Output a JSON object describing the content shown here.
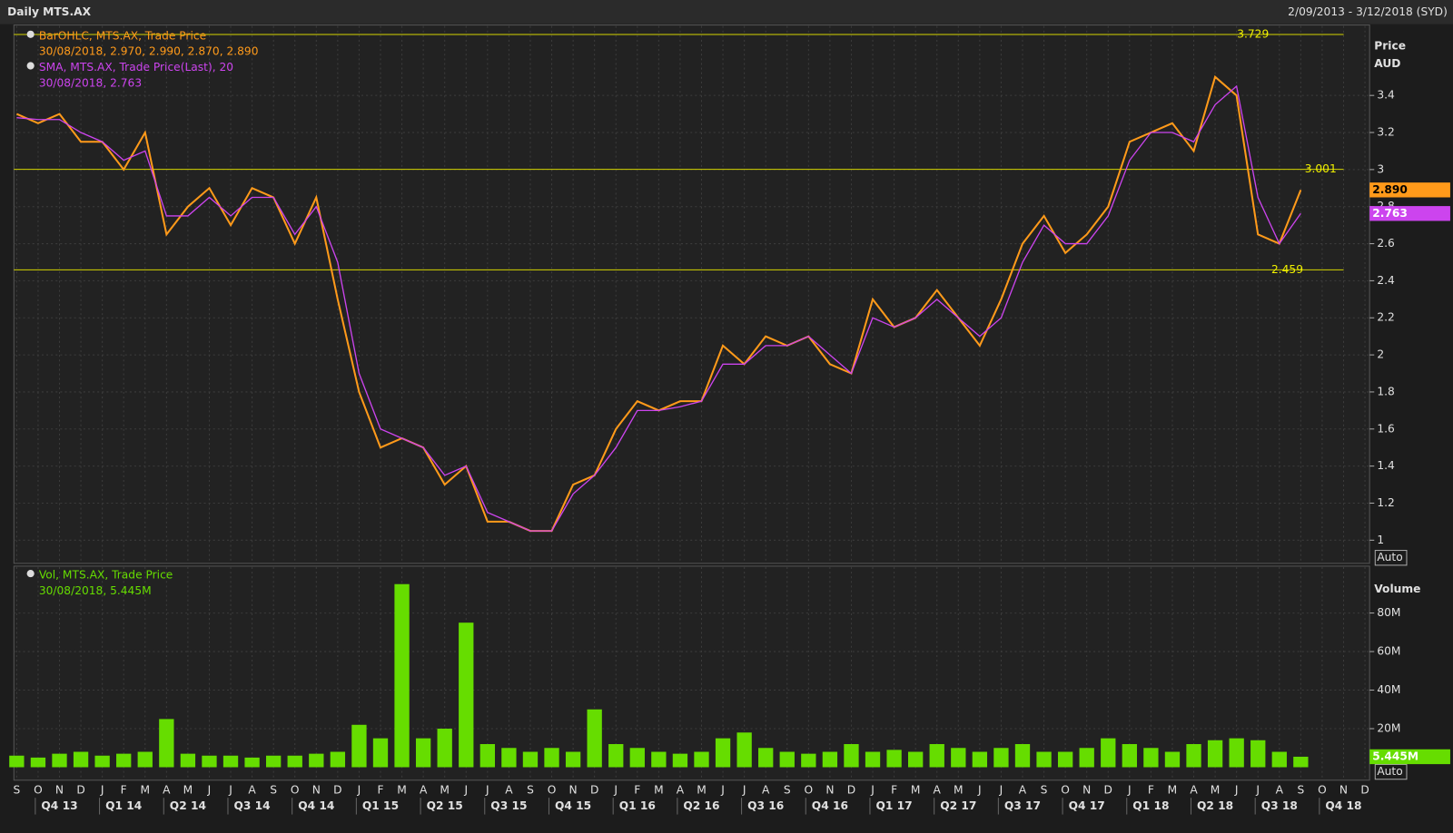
{
  "header": {
    "title": "Daily MTS.AX",
    "range": "2/09/2013 - 3/12/2018 (SYD)"
  },
  "chart_data": [
    {
      "type": "line",
      "axis_label": [
        "Price",
        "AUD"
      ],
      "scale_mode": "Auto",
      "categories": [
        "S",
        "O",
        "N",
        "D",
        "J",
        "F",
        "M",
        "A",
        "M",
        "J",
        "J",
        "A",
        "S",
        "O",
        "N",
        "D",
        "J",
        "F",
        "M",
        "A",
        "M",
        "J",
        "J",
        "A",
        "S",
        "O",
        "N",
        "D",
        "J",
        "F",
        "M",
        "A",
        "M",
        "J",
        "J",
        "A",
        "S",
        "O",
        "N",
        "D",
        "J",
        "F",
        "M",
        "A",
        "M",
        "J",
        "J",
        "A",
        "S",
        "O",
        "N",
        "D",
        "J",
        "F",
        "M",
        "A",
        "M",
        "J",
        "J",
        "A",
        "S",
        "O",
        "N",
        "D"
      ],
      "quarters": [
        "Q4 13",
        "Q1 14",
        "Q2 14",
        "Q3 14",
        "Q4 14",
        "Q1 15",
        "Q2 15",
        "Q3 15",
        "Q4 15",
        "Q1 16",
        "Q2 16",
        "Q3 16",
        "Q4 16",
        "Q1 17",
        "Q2 17",
        "Q3 17",
        "Q4 17",
        "Q1 18",
        "Q2 18",
        "Q3 18",
        "Q4 18"
      ],
      "series": [
        {
          "name": "BarOHLC, MTS.AX, Trade Price",
          "detail": "30/08/2018, 2.970, 2.990, 2.870, 2.890",
          "color": "#ff9a1a",
          "last_value": {
            "value": 2.89,
            "label": "2.890"
          },
          "values": [
            3.3,
            3.25,
            3.3,
            3.15,
            3.15,
            3.0,
            3.2,
            2.65,
            2.8,
            2.9,
            2.7,
            2.9,
            2.85,
            2.6,
            2.85,
            2.3,
            1.8,
            1.5,
            1.55,
            1.5,
            1.3,
            1.4,
            1.1,
            1.1,
            1.05,
            1.05,
            1.3,
            1.35,
            1.6,
            1.75,
            1.7,
            1.75,
            1.75,
            2.05,
            1.95,
            2.1,
            2.05,
            2.1,
            1.95,
            1.9,
            2.3,
            2.15,
            2.2,
            2.35,
            2.2,
            2.05,
            2.3,
            2.6,
            2.75,
            2.55,
            2.65,
            2.8,
            3.15,
            3.2,
            3.25,
            3.1,
            3.5,
            3.4,
            2.65,
            2.6,
            2.89,
            null,
            null,
            null
          ]
        },
        {
          "name": "SMA, MTS.AX, Trade Price(Last),  20",
          "detail": "30/08/2018, 2.763",
          "color": "#cc44ee",
          "last_value": {
            "value": 2.763,
            "label": "2.763"
          },
          "values": [
            3.28,
            3.27,
            3.27,
            3.2,
            3.15,
            3.05,
            3.1,
            2.75,
            2.75,
            2.85,
            2.75,
            2.85,
            2.85,
            2.65,
            2.8,
            2.5,
            1.9,
            1.6,
            1.55,
            1.5,
            1.35,
            1.4,
            1.15,
            1.1,
            1.05,
            1.05,
            1.25,
            1.35,
            1.5,
            1.7,
            1.7,
            1.72,
            1.75,
            1.95,
            1.95,
            2.05,
            2.05,
            2.1,
            2.0,
            1.9,
            2.2,
            2.15,
            2.2,
            2.3,
            2.2,
            2.1,
            2.2,
            2.5,
            2.7,
            2.6,
            2.6,
            2.75,
            3.05,
            3.2,
            3.2,
            3.15,
            3.35,
            3.45,
            2.85,
            2.6,
            2.763,
            null,
            null,
            null
          ]
        }
      ],
      "levels": [
        3.729,
        3.001,
        2.459
      ],
      "ylim": [
        0.875,
        3.78
      ],
      "yticks": [
        1,
        1.2,
        1.4,
        1.6,
        1.8,
        2,
        2.2,
        2.4,
        2.6,
        2.8,
        3,
        3.2,
        3.4
      ],
      "grid": true
    },
    {
      "type": "bar",
      "axis_label": "Volume",
      "scale_mode": "Auto",
      "series": [
        {
          "name": "Vol, MTS.AX, Trade Price",
          "detail": "30/08/2018, 5.445M",
          "color": "#66dd00",
          "last_value": {
            "value": 5.445,
            "label": "5.445M"
          },
          "values": [
            6,
            5,
            7,
            8,
            6,
            7,
            8,
            25,
            7,
            6,
            6,
            5,
            6,
            6,
            7,
            8,
            22,
            15,
            95,
            15,
            20,
            75,
            12,
            10,
            8,
            10,
            8,
            30,
            12,
            10,
            8,
            7,
            8,
            15,
            18,
            10,
            8,
            7,
            8,
            12,
            8,
            9,
            8,
            12,
            10,
            8,
            10,
            12,
            8,
            8,
            10,
            15,
            12,
            10,
            8,
            12,
            14,
            15,
            14,
            8,
            5.445,
            null,
            null,
            null
          ]
        }
      ],
      "ylim": [
        0,
        100
      ],
      "yticks": [
        {
          "value": 20,
          "label": "20M"
        },
        {
          "value": 40,
          "label": "40M"
        },
        {
          "value": 60,
          "label": "60M"
        },
        {
          "value": 80,
          "label": "80M"
        }
      ],
      "grid": true
    }
  ]
}
